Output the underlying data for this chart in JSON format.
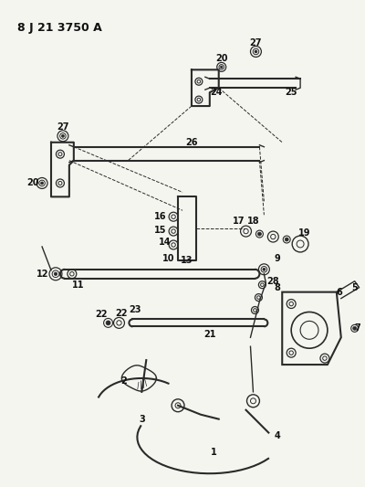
{
  "title": "8 J 21 3750 A",
  "bg_color": "#f5f5f0",
  "line_color": "#2a2a2a",
  "label_color": "#111111",
  "fig_width": 4.0,
  "fig_height": 5.33,
  "dpi": 100
}
